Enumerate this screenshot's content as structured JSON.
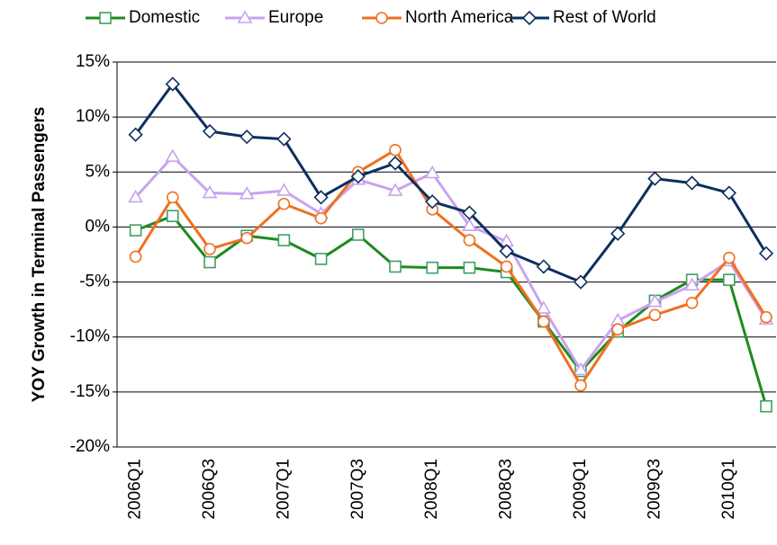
{
  "chart_data": {
    "type": "line",
    "y_label": "YOY Growth in Terminal Passengers",
    "categories": [
      "2006Q1",
      null,
      "2006Q3",
      null,
      "2007Q1",
      null,
      "2007Q3",
      null,
      "2008Q1",
      null,
      "2008Q3",
      null,
      "2009Q1",
      null,
      "2009Q3",
      null,
      "2010Q1",
      null
    ],
    "series": [
      {
        "name": "Domestic",
        "color": "#1e8a1e",
        "marker": "square",
        "marker_color": "#3f9f64",
        "values": [
          -0.3,
          1.0,
          -3.2,
          -0.8,
          -1.2,
          -2.9,
          -0.7,
          -3.6,
          -3.7,
          -3.7,
          -4.1,
          -8.6,
          -13.1,
          -9.5,
          -6.7,
          -4.8,
          -4.8,
          -16.3
        ]
      },
      {
        "name": "Europe",
        "color": "#c9a3ef",
        "marker": "triangle",
        "marker_color": "#c9a3ef",
        "values": [
          2.7,
          6.4,
          3.1,
          3.0,
          3.3,
          1.2,
          4.3,
          3.3,
          4.9,
          0.1,
          -1.3,
          -7.4,
          -13.0,
          -8.5,
          -6.8,
          -5.3,
          -3.1,
          -8.4
        ]
      },
      {
        "name": "North America",
        "color": "#f07020",
        "marker": "circle",
        "marker_color": "#f07020",
        "values": [
          -2.7,
          2.7,
          -2.0,
          -1.0,
          2.1,
          0.8,
          5.0,
          7.0,
          1.6,
          -1.2,
          -3.6,
          -8.6,
          -14.4,
          -9.3,
          -8.0,
          -6.9,
          -2.8,
          -8.2
        ]
      },
      {
        "name": "Rest of World",
        "color": "#0d2f5e",
        "marker": "diamond",
        "marker_color": "#0d2f5e",
        "values": [
          8.4,
          13.0,
          8.7,
          8.2,
          8.0,
          2.7,
          4.6,
          5.8,
          2.3,
          1.3,
          -2.2,
          -3.6,
          -5.0,
          -0.6,
          4.4,
          4.0,
          3.1,
          -2.4
        ]
      }
    ],
    "ylim": [
      -20,
      15
    ],
    "yticks": [
      {
        "value": -20,
        "label": "-20%"
      },
      {
        "value": -15,
        "label": "-15%"
      },
      {
        "value": -10,
        "label": "-10%"
      },
      {
        "value": -5,
        "label": "-5%"
      },
      {
        "value": 0,
        "label": "0%"
      },
      {
        "value": 5,
        "label": "5%"
      },
      {
        "value": 10,
        "label": "10%"
      },
      {
        "value": 15,
        "label": "15%"
      }
    ],
    "grid": true,
    "legend": "top"
  }
}
